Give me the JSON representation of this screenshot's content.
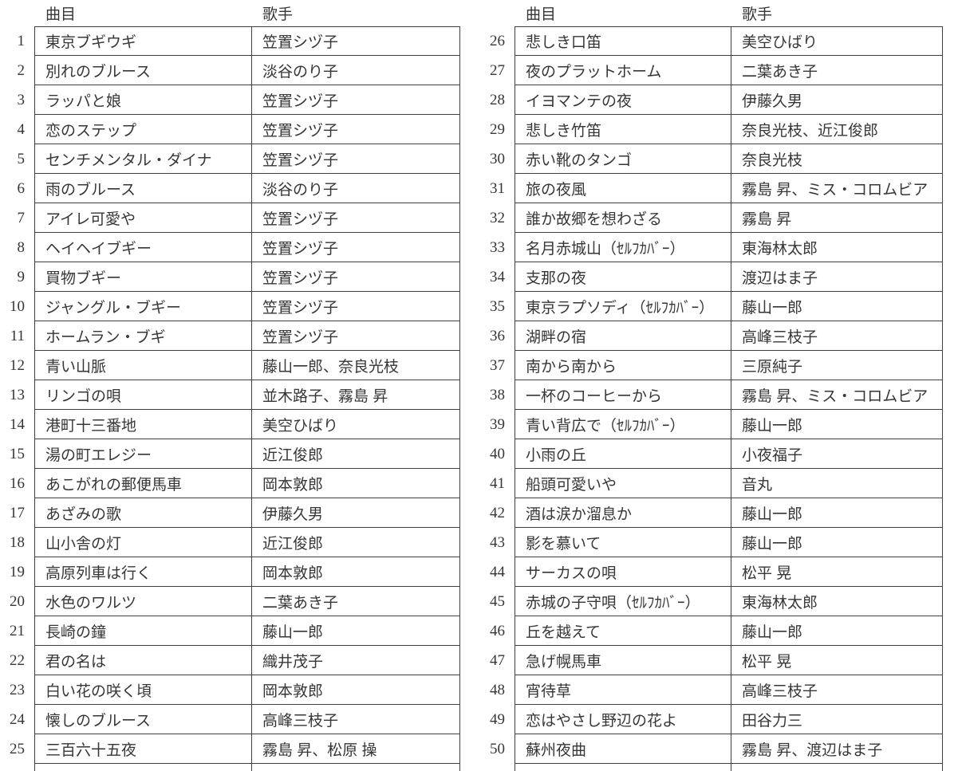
{
  "page": {
    "background": "#ffffff",
    "text_color": "#363636",
    "border_color": "#3f3f3f"
  },
  "tables": [
    {
      "headers": {
        "title": "曲目",
        "singer": "歌手"
      },
      "rows": [
        {
          "no": "1",
          "title": "東京ブギウギ",
          "singer": "笠置シヅ子"
        },
        {
          "no": "2",
          "title": "別れのブルース",
          "singer": "淡谷のり子"
        },
        {
          "no": "3",
          "title": "ラッパと娘",
          "singer": "笠置シヅ子"
        },
        {
          "no": "4",
          "title": "恋のステップ",
          "singer": "笠置シヅ子"
        },
        {
          "no": "5",
          "title": "センチメンタル・ダイナ",
          "singer": "笠置シヅ子"
        },
        {
          "no": "6",
          "title": "雨のブルース",
          "singer": "淡谷のり子"
        },
        {
          "no": "7",
          "title": "アイレ可愛や",
          "singer": "笠置シヅ子"
        },
        {
          "no": "8",
          "title": "ヘイヘイブギー",
          "singer": "笠置シヅ子"
        },
        {
          "no": "9",
          "title": "買物ブギー",
          "singer": "笠置シヅ子"
        },
        {
          "no": "10",
          "title": "ジャングル・ブギー",
          "singer": "笠置シヅ子"
        },
        {
          "no": "11",
          "title": "ホームラン・ブギ",
          "singer": "笠置シヅ子"
        },
        {
          "no": "12",
          "title": "青い山脈",
          "singer": "藤山一郎、奈良光枝"
        },
        {
          "no": "13",
          "title": "リンゴの唄",
          "singer": "並木路子、霧島 昇"
        },
        {
          "no": "14",
          "title": "港町十三番地",
          "singer": "美空ひばり"
        },
        {
          "no": "15",
          "title": "湯の町エレジー",
          "singer": "近江俊郎"
        },
        {
          "no": "16",
          "title": "あこがれの郵便馬車",
          "singer": "岡本敦郎"
        },
        {
          "no": "17",
          "title": "あざみの歌",
          "singer": "伊藤久男"
        },
        {
          "no": "18",
          "title": "山小舎の灯",
          "singer": "近江俊郎"
        },
        {
          "no": "19",
          "title": "高原列車は行く",
          "singer": "岡本敦郎"
        },
        {
          "no": "20",
          "title": "水色のワルツ",
          "singer": "二葉あき子"
        },
        {
          "no": "21",
          "title": "長崎の鐘",
          "singer": "藤山一郎"
        },
        {
          "no": "22",
          "title": "君の名は",
          "singer": "織井茂子"
        },
        {
          "no": "23",
          "title": "白い花の咲く頃",
          "singer": "岡本敦郎"
        },
        {
          "no": "24",
          "title": "懐しのブルース",
          "singer": "高峰三枝子"
        },
        {
          "no": "25",
          "title": "三百六十五夜",
          "singer": "霧島 昇、松原 操"
        }
      ]
    },
    {
      "headers": {
        "title": "曲目",
        "singer": "歌手"
      },
      "rows": [
        {
          "no": "26",
          "title": "悲しき口笛",
          "singer": "美空ひばり"
        },
        {
          "no": "27",
          "title": "夜のプラットホーム",
          "singer": "二葉あき子"
        },
        {
          "no": "28",
          "title": "イヨマンテの夜",
          "singer": "伊藤久男"
        },
        {
          "no": "29",
          "title": "悲しき竹笛",
          "singer": "奈良光枝、近江俊郎"
        },
        {
          "no": "30",
          "title": "赤い靴のタンゴ",
          "singer": "奈良光枝"
        },
        {
          "no": "31",
          "title": "旅の夜風",
          "singer": "霧島 昇、ミス・コロムビア"
        },
        {
          "no": "32",
          "title": "誰か故郷を想わざる",
          "singer": "霧島 昇"
        },
        {
          "no": "33",
          "title": "名月赤城山（ｾﾙﾌｶﾊﾞｰ）",
          "singer": "東海林太郎"
        },
        {
          "no": "34",
          "title": "支那の夜",
          "singer": "渡辺はま子"
        },
        {
          "no": "35",
          "title": "東京ラプソディ（ｾﾙﾌｶﾊﾞｰ）",
          "singer": "藤山一郎"
        },
        {
          "no": "36",
          "title": "湖畔の宿",
          "singer": "高峰三枝子"
        },
        {
          "no": "37",
          "title": "南から南から",
          "singer": "三原純子"
        },
        {
          "no": "38",
          "title": "一杯のコーヒーから",
          "singer": "霧島 昇、ミス・コロムビア"
        },
        {
          "no": "39",
          "title": "青い背広で（ｾﾙﾌｶﾊﾞｰ）",
          "singer": "藤山一郎"
        },
        {
          "no": "40",
          "title": "小雨の丘",
          "singer": "小夜福子"
        },
        {
          "no": "41",
          "title": "船頭可愛いや",
          "singer": "音丸"
        },
        {
          "no": "42",
          "title": "酒は涙か溜息か",
          "singer": "藤山一郎"
        },
        {
          "no": "43",
          "title": "影を慕いて",
          "singer": "藤山一郎"
        },
        {
          "no": "44",
          "title": "サーカスの唄",
          "singer": "松平 晃"
        },
        {
          "no": "45",
          "title": "赤城の子守唄（ｾﾙﾌｶﾊﾞｰ）",
          "singer": "東海林太郎"
        },
        {
          "no": "46",
          "title": "丘を越えて",
          "singer": "藤山一郎"
        },
        {
          "no": "47",
          "title": "急げ幌馬車",
          "singer": "松平 晃"
        },
        {
          "no": "48",
          "title": "宵待草",
          "singer": "高峰三枝子"
        },
        {
          "no": "49",
          "title": "恋はやさし野辺の花よ",
          "singer": "田谷力三"
        },
        {
          "no": "50",
          "title": "蘇州夜曲",
          "singer": "霧島 昇、渡辺はま子"
        }
      ]
    }
  ]
}
